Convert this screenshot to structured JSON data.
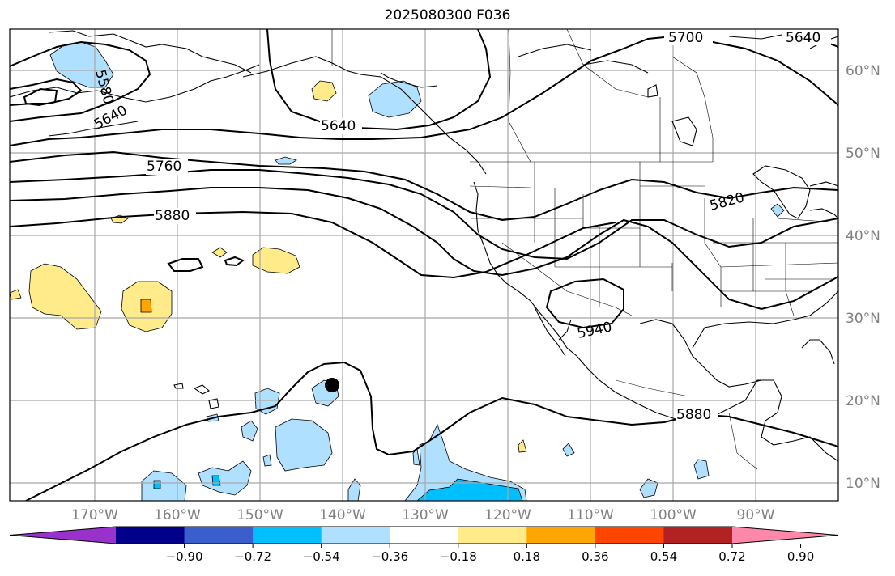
{
  "title": "2025080300 F036",
  "lon_labels": [
    "170°W",
    "160°W",
    "150°W",
    "140°W",
    "130°W",
    "120°W",
    "110°W",
    "100°W",
    "90°W"
  ],
  "lat_labels": [
    "60°N",
    "50°N",
    "40°N",
    "30°N",
    "20°N",
    "10°N"
  ],
  "contour_labels": [
    "5700",
    "5640",
    "5580",
    "5640",
    "5640",
    "5760",
    "5880",
    "5820",
    "5940",
    "5880"
  ],
  "colorbar": {
    "tick_labels": [
      "−0.90",
      "−0.72",
      "−0.54",
      "−0.36",
      "−0.18",
      "0.18",
      "0.36",
      "0.54",
      "0.72",
      "0.90"
    ],
    "colors": [
      "#9932cc",
      "#00008b",
      "#3a5fcd",
      "#00bfff",
      "#b0e0ff",
      "#ffffff",
      "#ffeb8a",
      "#ffa500",
      "#ff4500",
      "#b22222",
      "#ff88aa"
    ]
  },
  "marker": {
    "label": "",
    "lon": -141.5,
    "lat": 22
  }
}
